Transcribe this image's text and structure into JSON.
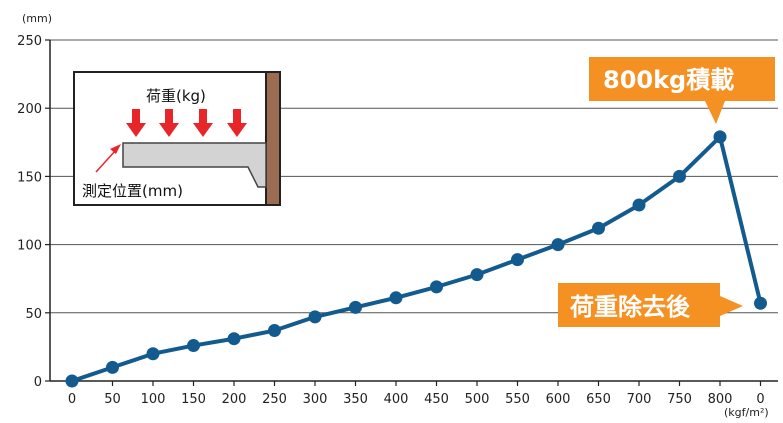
{
  "chart_data": {
    "type": "line",
    "y_unit": "(mm)",
    "x_unit": "(kgf/m²)",
    "ylim": [
      0,
      250
    ],
    "y_ticks": [
      0,
      50,
      100,
      150,
      200,
      250
    ],
    "grid": "horizontal",
    "categories": [
      "0",
      "50",
      "100",
      "150",
      "200",
      "250",
      "300",
      "350",
      "400",
      "450",
      "500",
      "550",
      "600",
      "650",
      "700",
      "750",
      "800",
      "0"
    ],
    "values": [
      0,
      10,
      20,
      26,
      31,
      37,
      47,
      54,
      61,
      69,
      78,
      89,
      100,
      112,
      129,
      150,
      179,
      57
    ],
    "line_color": "#135b8e",
    "annotations": [
      {
        "text": "800kg積載",
        "target_index": 16,
        "color": "#f59023"
      },
      {
        "text": "荷重除去後",
        "target_index": 17,
        "color": "#f59023"
      }
    ],
    "inset": {
      "load_label": "荷重(kg)",
      "measure_label": "測定位置(mm)",
      "arrow_color": "#e8262a",
      "shelf_color": "#d3d3d3",
      "wall_color": "#9b6b52"
    }
  }
}
